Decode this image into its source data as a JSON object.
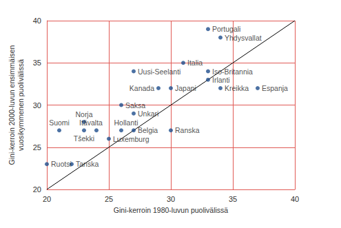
{
  "chart_data": {
    "type": "scatter",
    "x_label": "Gini-kerroin 1980-luvun puolivälissä",
    "y_label": "Gini-kerroin 2000-luvun ensimmäisen\nvuosikymmenen puolivälissä",
    "labels": [
      "Portugali",
      "Yhdysvallat",
      "Italia",
      "Uusi-Seelanti",
      "Iso-Britannia",
      "Irlanti",
      "Kanada",
      "Japani",
      "Kreikka",
      "Espanja",
      "Saksa",
      "Unkari",
      "Norja",
      "Suomi",
      "Itävalta",
      "Tšekki",
      "Hollanti",
      "Belgia",
      "Ranska",
      "Luxemburg",
      "Ruotsi",
      "Tanska"
    ],
    "x": [
      33,
      34,
      31,
      27,
      33,
      33,
      29,
      30,
      34,
      37,
      26,
      27,
      23,
      21,
      24,
      23,
      26,
      27,
      30,
      25,
      20,
      22
    ],
    "values": [
      39,
      38,
      35,
      34,
      34,
      33,
      32,
      32,
      32,
      32,
      30,
      29,
      28,
      27,
      27,
      27,
      27,
      27,
      27,
      26,
      23,
      23
    ],
    "color": "#1f4e8c",
    "marker": "circle",
    "reference_line": {
      "x": [
        20,
        40
      ],
      "y": [
        20,
        40
      ]
    },
    "xlim": [
      20,
      40
    ],
    "ylim": [
      20,
      40
    ],
    "xticks": [
      20,
      25,
      30,
      35,
      40
    ],
    "yticks": [
      20,
      25,
      30,
      35,
      40
    ],
    "grid": true
  }
}
